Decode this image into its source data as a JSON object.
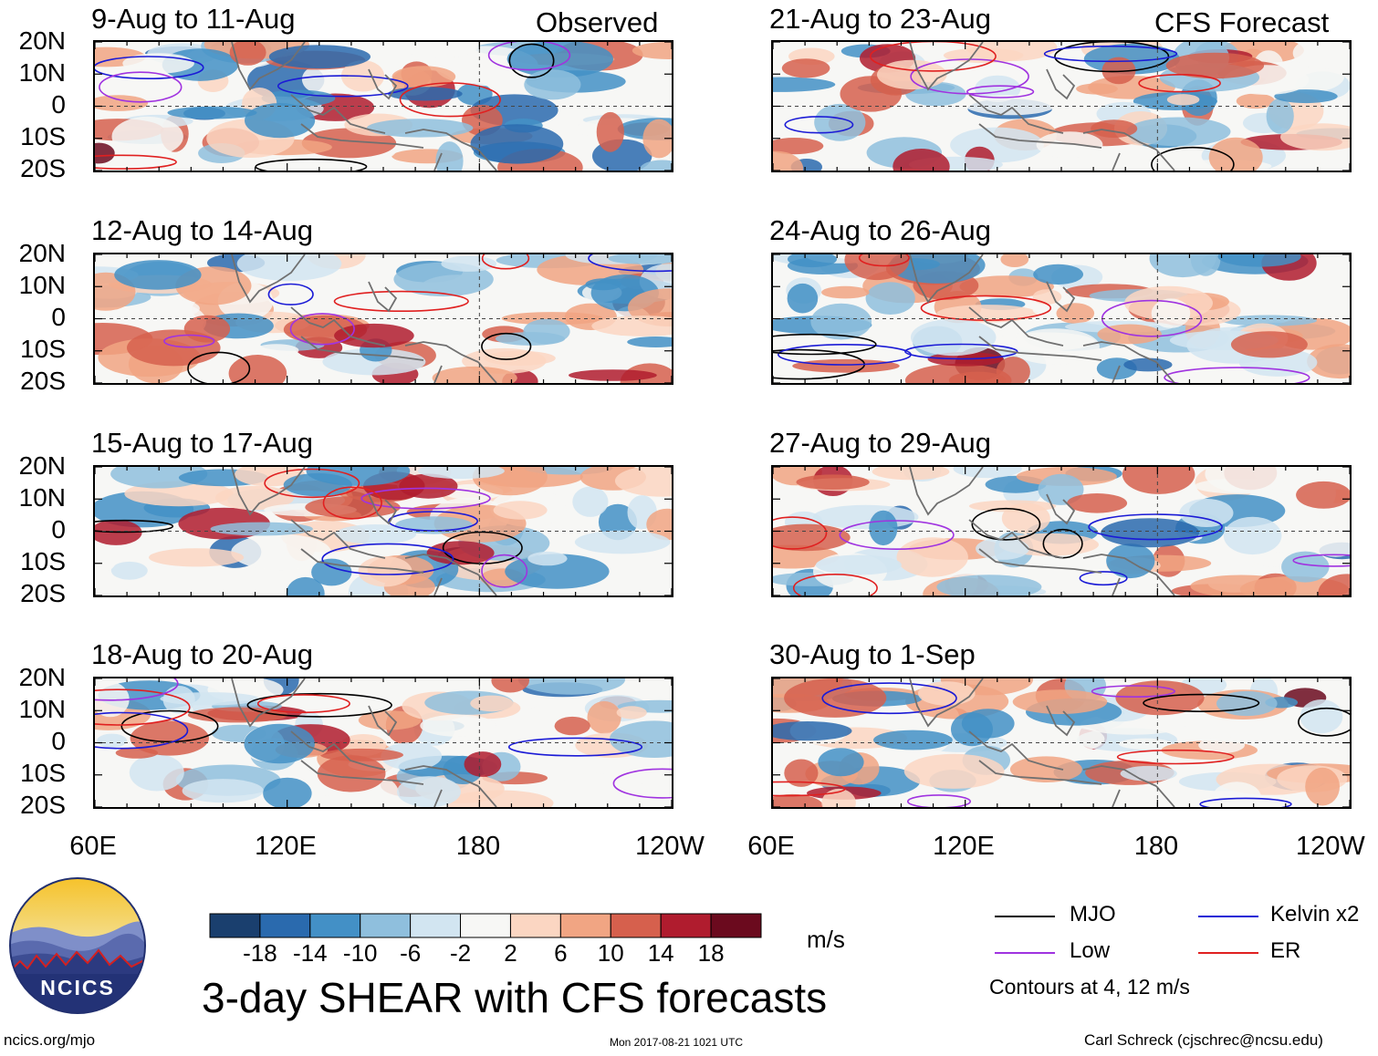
{
  "chart_data": {
    "type": "heatmap",
    "title": "3-day SHEAR with CFS forecasts",
    "units": "m/s",
    "column_headers": [
      "Observed",
      "CFS Forecast"
    ],
    "y_ticks": [
      "20N",
      "10N",
      "0",
      "10S",
      "20S"
    ],
    "x_ticks": [
      "60E",
      "120E",
      "180",
      "120W"
    ],
    "x_range": [
      60,
      240
    ],
    "y_range": [
      -20,
      20
    ],
    "panels": [
      {
        "label": "9-Aug to 11-Aug",
        "column": "Observed",
        "row": 0
      },
      {
        "label": "12-Aug to 14-Aug",
        "column": "Observed",
        "row": 1
      },
      {
        "label": "15-Aug to 17-Aug",
        "column": "Observed",
        "row": 2
      },
      {
        "label": "18-Aug to 20-Aug",
        "column": "Observed",
        "row": 3
      },
      {
        "label": "21-Aug to 23-Aug",
        "column": "CFS Forecast",
        "row": 0
      },
      {
        "label": "24-Aug to 26-Aug",
        "column": "CFS Forecast",
        "row": 1
      },
      {
        "label": "27-Aug to 29-Aug",
        "column": "CFS Forecast",
        "row": 2
      },
      {
        "label": "30-Aug to 1-Sep",
        "column": "CFS Forecast",
        "row": 3
      }
    ],
    "colorbar": {
      "labels": [
        "-18",
        "-14",
        "-10",
        "-6",
        "-2",
        "2",
        "6",
        "10",
        "14",
        "18"
      ],
      "colors": [
        "#1a3f6e",
        "#2a6aae",
        "#4390c6",
        "#8fbfdd",
        "#d2e5f1",
        "#f7f7f5",
        "#fbd6c2",
        "#f1a583",
        "#d6604d",
        "#b01c2e",
        "#6b0a1e"
      ]
    },
    "legend": [
      {
        "label": "MJO",
        "color": "#000000"
      },
      {
        "label": "Kelvin x2",
        "color": "#1b1bd6"
      },
      {
        "label": "Low",
        "color": "#a033e0"
      },
      {
        "label": "ER",
        "color": "#e02020"
      }
    ],
    "contours_note": "Contours at 4, 12 m/s"
  },
  "logo": {
    "text": "NCICS"
  },
  "footer": {
    "left": "ncics.org/mjo",
    "center": "Mon 2017-08-21 1021 UTC",
    "right": "Carl Schreck (cjschrec@ncsu.edu)"
  }
}
